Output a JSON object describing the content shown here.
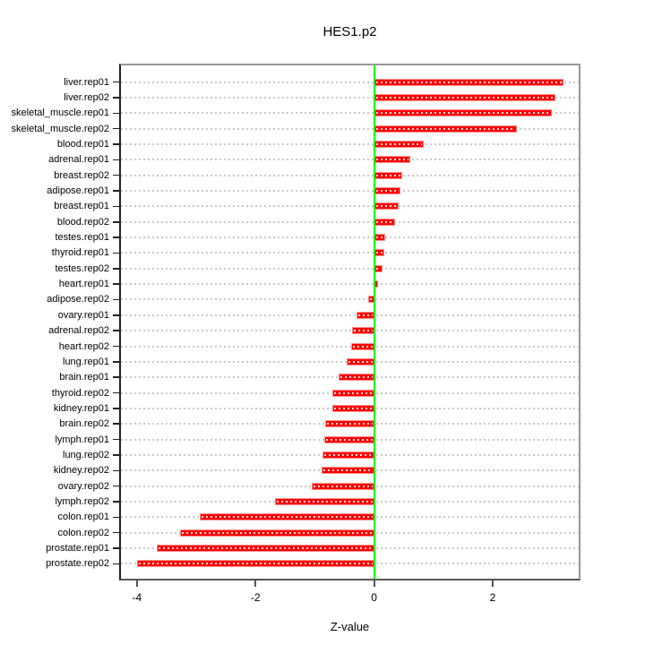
{
  "chart_data": {
    "type": "bar",
    "orientation": "horizontal",
    "title": "HES1.p2",
    "xlabel": "Z-value",
    "ylabel": "",
    "legend": "none",
    "grid": "horizontal-dotted-per-category",
    "categories": [
      "liver.rep01",
      "liver.rep02",
      "skeletal_muscle.rep01",
      "skeletal_muscle.rep02",
      "blood.rep01",
      "adrenal.rep01",
      "breast.rep02",
      "adipose.rep01",
      "breast.rep01",
      "blood.rep02",
      "testes.rep01",
      "thyroid.rep01",
      "testes.rep02",
      "heart.rep01",
      "adipose.rep02",
      "ovary.rep01",
      "adrenal.rep02",
      "heart.rep02",
      "lung.rep01",
      "brain.rep01",
      "thyroid.rep02",
      "kidney.rep01",
      "brain.rep02",
      "lymph.rep01",
      "lung.rep02",
      "kidney.rep02",
      "ovary.rep02",
      "lymph.rep02",
      "colon.rep01",
      "colon.rep02",
      "prostate.rep01",
      "prostate.rep02"
    ],
    "values": [
      3.2,
      3.05,
      3.0,
      2.41,
      0.84,
      0.61,
      0.47,
      0.45,
      0.41,
      0.36,
      0.19,
      0.17,
      0.14,
      0.06,
      -0.1,
      -0.29,
      -0.37,
      -0.38,
      -0.46,
      -0.6,
      -0.71,
      -0.71,
      -0.82,
      -0.84,
      -0.87,
      -0.89,
      -1.05,
      -1.67,
      -2.94,
      -3.27,
      -3.67,
      -4.0
    ],
    "x_ticks": [
      -4,
      -2,
      0,
      2
    ],
    "x_tick_labels": [
      "-4",
      "-2",
      "0",
      "2"
    ],
    "xlim": [
      -4.27,
      3.45
    ],
    "zero_reference_line": 0,
    "colors": {
      "bar_fill": "#FF0000",
      "bar_edge": "#FF8F8F",
      "zero_line": "#00FF00",
      "grid_dots": "#C9C9C9",
      "box_top_right": "#989898",
      "box_bottom": "#555555",
      "axis_left": "#222222",
      "text": "#000000",
      "background": "#FFFFFF"
    }
  }
}
